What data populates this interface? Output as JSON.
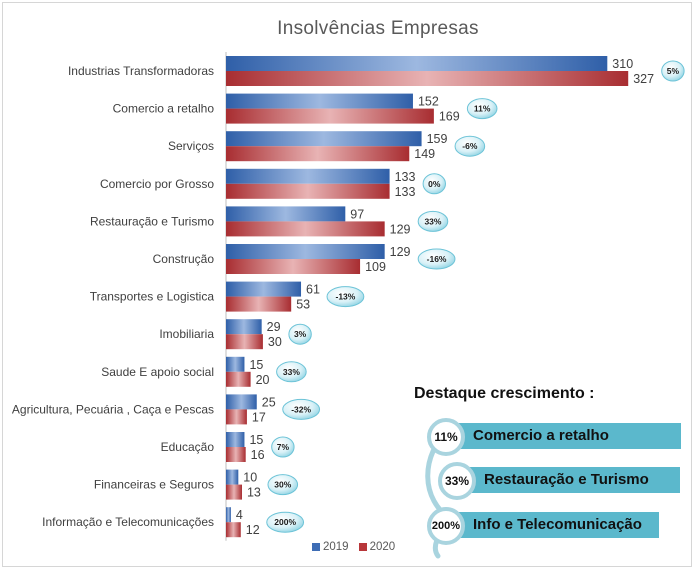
{
  "chart_data": {
    "type": "bar",
    "orientation": "horizontal",
    "title": "Insolvências Empresas",
    "categories": [
      "Industrias Transformadoras",
      "Comercio a retalho",
      "Serviços",
      "Comercio por Grosso",
      "Restauração e Turismo",
      "Construção",
      "Transportes e Logistica",
      "Imobiliaria",
      "Saude E apoio social",
      "Agricultura, Pecuária , Caça e Pescas",
      "Educação",
      "Financeiras e Seguros",
      "Informação e Telecomunicações"
    ],
    "series": [
      {
        "name": "2019",
        "values": [
          310,
          152,
          159,
          133,
          97,
          129,
          61,
          29,
          15,
          25,
          15,
          10,
          4
        ],
        "color": "#3e6db5"
      },
      {
        "name": "2020",
        "values": [
          327,
          169,
          149,
          133,
          129,
          109,
          53,
          30,
          20,
          17,
          16,
          13,
          12
        ],
        "color": "#b8373a"
      }
    ],
    "changes": [
      "5%",
      "11%",
      "-6%",
      "0%",
      "33%",
      "-16%",
      "-13%",
      "3%",
      "33%",
      "-32%",
      "7%",
      "30%",
      "200%"
    ],
    "legend_position": "bottom",
    "grid": false
  },
  "highlight": {
    "title": "Destaque crescimento :",
    "items": [
      {
        "pct": "11%",
        "label": "Comercio a retalho"
      },
      {
        "pct": "33%",
        "label": "Restauração e Turismo"
      },
      {
        "pct": "200%",
        "label": "Info e Telecomunicação"
      }
    ],
    "accent": "#5bb8cc"
  }
}
